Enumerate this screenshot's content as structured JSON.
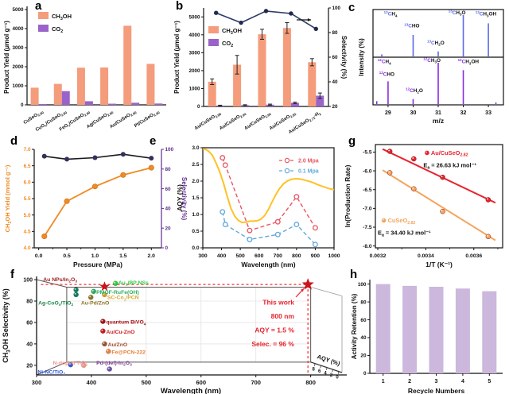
{
  "chart_data": [
    {
      "panel": "a",
      "type": "grouped-bar",
      "ylabel": "Product Yield (μmol g⁻¹)",
      "ylim": [
        0,
        5000
      ],
      "yticks": [
        0,
        1000,
        2000,
        3000,
        4000,
        5000
      ],
      "categories": [
        "CuSeO_{2.90}",
        "CuO_{x}/CuSeO_{2.90}",
        "FeO_{x}/CuSeO_{2.90}",
        "Ag/CuSeO_{2.90}",
        "Au/CuSeO_{2.90}",
        "Pt/CuSeO_{2.90}"
      ],
      "series": [
        {
          "name": "CH_{3}OH",
          "color": "#F49C7B",
          "values": [
            900,
            1100,
            1950,
            1960,
            4150,
            2150
          ]
        },
        {
          "name": "CO_{2}",
          "color": "#9A63C9",
          "values": [
            40,
            720,
            190,
            60,
            110,
            70
          ]
        }
      ]
    },
    {
      "panel": "b",
      "type": "grouped-bar-line",
      "ylabel": "Product Yield (μmol g⁻¹)",
      "ylim": [
        0,
        5500
      ],
      "yticks": [
        0,
        1000,
        2000,
        3000,
        4000,
        5000
      ],
      "categories": [
        "Au/CuSeO_{2.98}",
        "Au/CuSeO_{2.94}",
        "Au/CuSeO_{2.90}",
        "Au/CuSeO_{2.82}",
        "Au/CuSeO_{2.71}-H_{2}"
      ],
      "series": [
        {
          "name": "CH_{3}OH",
          "color": "#F49C7B",
          "values": [
            1380,
            2330,
            4030,
            4380,
            2470
          ],
          "errors": [
            160,
            520,
            280,
            300,
            200
          ]
        },
        {
          "name": "CO_{2}",
          "color": "#9A63C9",
          "values": [
            50,
            70,
            100,
            200,
            600
          ],
          "errors": [
            20,
            25,
            30,
            40,
            150
          ]
        }
      ],
      "right_axis": {
        "label": "Selectivity (%)",
        "ylim": [
          20,
          100
        ],
        "yticks": [
          20,
          40,
          60,
          80,
          100
        ],
        "values": [
          96,
          88,
          97.5,
          95.5,
          83
        ],
        "color": "#2B3A67",
        "marker_color": "#1F2A4D"
      }
    },
    {
      "panel": "c",
      "type": "mass-spec",
      "xlabel": "m/z",
      "ylabel": "Intensity (%)",
      "xlim": [
        28.4,
        33.6
      ],
      "xticks": [
        29,
        30,
        31,
        32,
        33
      ],
      "spectra": [
        {
          "pre": "^{13}C",
          "color": "#5A6BE8",
          "peaks": [
            [
              28.75,
              0.05
            ],
            [
              30,
              0.52
            ],
            [
              31,
              0.12
            ],
            [
              32,
              1.0
            ],
            [
              33,
              0.8
            ]
          ],
          "labels": [
            {
              "body": "H_{4}",
              "x": 29.1,
              "y": 0.9
            },
            {
              "body": "HO",
              "x": 29.95,
              "y": 0.63
            },
            {
              "body": "H_{2}O",
              "x": 30.9,
              "y": 0.25
            },
            {
              "body": "H_{3}O",
              "x": 31.75,
              "y": 0.93
            },
            {
              "body": "H_{3}OH",
              "x": 32.9,
              "y": 0.9
            }
          ]
        },
        {
          "pre": "^{12}C",
          "color": "#8A2BE2",
          "peaks": [
            [
              28.55,
              0.07
            ],
            [
              29,
              0.55
            ],
            [
              30,
              0.12
            ],
            [
              31,
              1.0
            ],
            [
              32,
              0.82
            ],
            [
              33.3,
              0.04
            ]
          ],
          "labels": [
            {
              "body": "H_{4}",
              "x": 28.85,
              "y": 0.9
            },
            {
              "body": "HO",
              "x": 28.95,
              "y": 0.62
            },
            {
              "body": "H_{2}O",
              "x": 30.05,
              "y": 0.25
            },
            {
              "body": "H_{3}O",
              "x": 30.75,
              "y": 0.93
            },
            {
              "body": "H_{3}OH",
              "x": 32.2,
              "y": 0.9
            }
          ]
        }
      ]
    },
    {
      "panel": "d",
      "type": "dual-line",
      "xlabel": "Pressure (MPa)",
      "xlim": [
        -0.08,
        2.18
      ],
      "xticks": [
        0,
        0.5,
        1,
        1.5,
        2
      ],
      "xtick_decimals": 1,
      "xminor": [
        0.25,
        0.75,
        1.25,
        1.75
      ],
      "left": {
        "label": "CH_{3}OH Yield (mmol g⁻¹)",
        "color": "#F08A24",
        "ylim": [
          4,
          7
        ],
        "yticks": [
          4,
          4.5,
          5,
          5.5,
          6,
          6.5,
          7
        ],
        "tick_decimals": 1,
        "x": [
          0.1,
          0.5,
          1,
          1.5,
          2
        ],
        "values": [
          4.35,
          5.42,
          5.87,
          6.22,
          6.44
        ]
      },
      "right": {
        "label": "Selectivity (%)",
        "color": "#5B2D8E",
        "ylim": [
          0,
          100
        ],
        "yticks": [
          0,
          20,
          40,
          60,
          80,
          100
        ],
        "x": [
          0.1,
          0.5,
          1,
          1.5,
          2
        ],
        "values": [
          93,
          90,
          91.5,
          95,
          91
        ],
        "line_color": "#1a1a1a",
        "marker_color": "#3A2D5C"
      }
    },
    {
      "panel": "e",
      "type": "aqy-spectrum",
      "xlabel": "Wavelength (nm)",
      "ylabel": "AQY (%)",
      "xlim": [
        300,
        1000
      ],
      "xticks": [
        300,
        400,
        500,
        600,
        700,
        800,
        900,
        1000
      ],
      "ylim": [
        0,
        3
      ],
      "yticks": [
        0,
        0.5,
        1,
        1.5,
        2,
        2.5,
        3
      ],
      "ytick_decimals": 1,
      "absorbance": {
        "color": "#FFC125",
        "points": [
          [
            300,
            2.97
          ],
          [
            315,
            2.95
          ],
          [
            330,
            2.9
          ],
          [
            350,
            2.78
          ],
          [
            370,
            2.55
          ],
          [
            390,
            2.28
          ],
          [
            410,
            1.95
          ],
          [
            430,
            1.55
          ],
          [
            450,
            1.18
          ],
          [
            470,
            0.95
          ],
          [
            490,
            0.82
          ],
          [
            510,
            0.76
          ],
          [
            530,
            0.77
          ],
          [
            550,
            0.8
          ],
          [
            570,
            0.8
          ],
          [
            590,
            0.81
          ],
          [
            610,
            0.86
          ],
          [
            630,
            0.97
          ],
          [
            650,
            1.15
          ],
          [
            670,
            1.38
          ],
          [
            690,
            1.6
          ],
          [
            710,
            1.78
          ],
          [
            730,
            1.92
          ],
          [
            750,
            2.0
          ],
          [
            770,
            2.05
          ],
          [
            790,
            2.07
          ],
          [
            810,
            2.07
          ],
          [
            830,
            2.05
          ],
          [
            850,
            2.02
          ],
          [
            870,
            1.99
          ],
          [
            890,
            1.95
          ],
          [
            910,
            1.9
          ],
          [
            930,
            1.86
          ],
          [
            950,
            1.82
          ],
          [
            970,
            1.78
          ],
          [
            1000,
            1.74
          ]
        ]
      },
      "series": [
        {
          "name": "2.0 Mpa",
          "color": "#E85662",
          "x": [
            405,
            420,
            550,
            700,
            800,
            900
          ],
          "values": [
            2.7,
            2.48,
            0.52,
            0.78,
            1.53,
            0.6
          ]
        },
        {
          "name": "0.1 Mpa",
          "color": "#62A8DC",
          "x": [
            405,
            420,
            550,
            700,
            800,
            900
          ],
          "values": [
            1.08,
            0.7,
            0.25,
            0.4,
            0.7,
            0.1
          ]
        }
      ]
    },
    {
      "panel": "g",
      "type": "arrhenius",
      "xlabel": "1/T (K⁻¹)",
      "ylabel": "ln(Production Rate)",
      "xlim": [
        0.00319,
        0.00372
      ],
      "xticks": [
        0.0032,
        0.0034,
        0.0036
      ],
      "xtick_decimals": 4,
      "xminor": [
        0.0033,
        0.0035,
        0.0037
      ],
      "ylim": [
        -8.05,
        -5.3
      ],
      "yticks": [
        -5.5,
        -6,
        -6.5,
        -7,
        -7.5,
        -8
      ],
      "ytick_decimals": 1,
      "series": [
        {
          "name": "Au/CuSeO_{2.82}",
          "color": "#E8232E",
          "x": [
            0.00325,
            0.00335,
            0.00347,
            0.00366
          ],
          "values": [
            -5.48,
            -5.68,
            -6.17,
            -6.77
          ],
          "fit": [
            [
              0.00322,
              -5.42
            ],
            [
              0.00369,
              -6.85
            ]
          ],
          "ea_label": "E_{a} = 26.63 kJ mol⁻¹",
          "name_pos": [
            0.003405,
            -5.52
          ],
          "ea_pos": [
            0.00339,
            -5.85
          ]
        },
        {
          "name": "CuSeO_{2.82}",
          "color": "#F5A45C",
          "x": [
            0.00325,
            0.00335,
            0.00347,
            0.00366
          ],
          "values": [
            -6.05,
            -6.48,
            -7.08,
            -7.75
          ],
          "fit": [
            [
              0.00322,
              -5.98
            ],
            [
              0.00369,
              -7.85
            ]
          ],
          "ea_label": "E_{a} = 34.40 kJ mol⁻¹",
          "name_pos": [
            0.003225,
            -7.32
          ],
          "ea_pos": [
            0.0032,
            -7.65
          ]
        }
      ]
    },
    {
      "panel": "f",
      "type": "selectivity-map",
      "xlabel": "Wavelength (nm)",
      "ylabel": "CH_{3}OH Selectivity (%)",
      "xlim": [
        300,
        860
      ],
      "xticks": [
        300,
        400,
        500,
        600,
        700,
        800
      ],
      "ylim": [
        11,
        103
      ],
      "yticks": [
        20,
        40,
        60,
        80,
        100
      ],
      "aqy_axis": {
        "label": "AQY (%)",
        "ticks": [
          "8",
          "6",
          "4",
          "2",
          "0"
        ]
      },
      "box": {
        "x1": 355,
        "x2": 800,
        "y_top": 93,
        "y_floor": 23
      },
      "points": [
        {
          "x": 372,
          "y": 90.5,
          "c": "#0F7D62"
        },
        {
          "x": 372,
          "y": 86,
          "c": "#0F7D62"
        },
        {
          "x": 399,
          "y": 83.5,
          "c": "#8B7320"
        },
        {
          "x": 424,
          "y": 86,
          "c": "#C9A227"
        },
        {
          "x": 444,
          "y": 96.5,
          "c": "#2ECC40"
        },
        {
          "x": 404,
          "y": 89,
          "c": "#27AE60"
        },
        {
          "x": 421,
          "y": 61,
          "c": "#A50F15"
        },
        {
          "x": 421,
          "y": 52,
          "c": "#CB181D"
        },
        {
          "x": 424,
          "y": 40,
          "c": "#A0522D"
        },
        {
          "x": 431,
          "y": 33,
          "c": "#E8803A"
        },
        {
          "x": 386,
          "y": 20,
          "c": "#F1948A"
        },
        {
          "x": 433,
          "y": 16.5,
          "c": "#6A51A3"
        },
        {
          "x": 362,
          "y": 20.5,
          "c": "#2E59D8"
        }
      ],
      "labels": [
        {
          "t": "Au NPs/In_{2}O_{3}",
          "c": "#9B1B1B",
          "x": 312,
          "y": 100.5
        },
        {
          "t": "Au_{1}/BP NSs",
          "c": "#2ECC40",
          "x": 449,
          "y": 97.5
        },
        {
          "t": "PMOF-RuFe(OH)",
          "c": "#27AE60",
          "x": 409,
          "y": 88.5
        },
        {
          "t": "SC-Co_{1}/PCN",
          "c": "#D9A62E",
          "x": 429,
          "y": 83.5
        },
        {
          "t": "Ag-CoO_{x}/TiO_{2}",
          "c": "#1E8449",
          "x": 303,
          "y": 78.5
        },
        {
          "t": "Au-Pd/ZnO",
          "c": "#8B7320",
          "x": 381,
          "y": 78.5
        },
        {
          "t": "quantum BiVO_{4}",
          "c": "#A50F15",
          "x": 427,
          "y": 60.5
        },
        {
          "t": "Au/Cu-ZnO",
          "c": "#CB181D",
          "x": 427,
          "y": 51.5
        },
        {
          "t": "Au/ZnO",
          "c": "#A0522D",
          "x": 430,
          "y": 39.5
        },
        {
          "t": "Fe@PCN-222",
          "c": "#E8803A",
          "x": 437,
          "y": 32.5
        },
        {
          "t": "N-doped TiO_{2}",
          "c": "#F1948A",
          "x": 330,
          "y": 22.5
        },
        {
          "t": "Pd-(def)-In_{2}O_{3}",
          "c": "#7D3C98",
          "x": 409,
          "y": 22.5
        },
        {
          "t": "Ni-NC/TiO_{2}",
          "c": "#2E59D8",
          "x": 302,
          "y": 14
        }
      ],
      "stars": {
        "color": "#CC1318",
        "points": [
          [
            424,
            93.5
          ],
          [
            795,
            95.5
          ]
        ]
      },
      "guide": {
        "color": "#FF2E2E",
        "h_y": 95.5,
        "h_x1": 308,
        "v_x": 795,
        "v_y1": 11
      },
      "callout": {
        "color": "#E8232E",
        "lines": [
          "This work",
          "800 nm",
          "AQY = 1.5 %",
          "Selec. = 96 %"
        ],
        "x": 770,
        "ys": [
          79,
          66,
          53,
          40
        ]
      }
    },
    {
      "panel": "h",
      "type": "bar",
      "xlabel": "Recycle Numbers",
      "ylabel": "Activity Retention (%)",
      "categories": [
        "1",
        "2",
        "3",
        "4",
        "5"
      ],
      "values": [
        100,
        98,
        97,
        95,
        92
      ],
      "bar_color": "#CBB8DC",
      "ylim": [
        0,
        105
      ],
      "yticks": [
        0,
        20,
        40,
        60,
        80,
        100
      ]
    }
  ]
}
